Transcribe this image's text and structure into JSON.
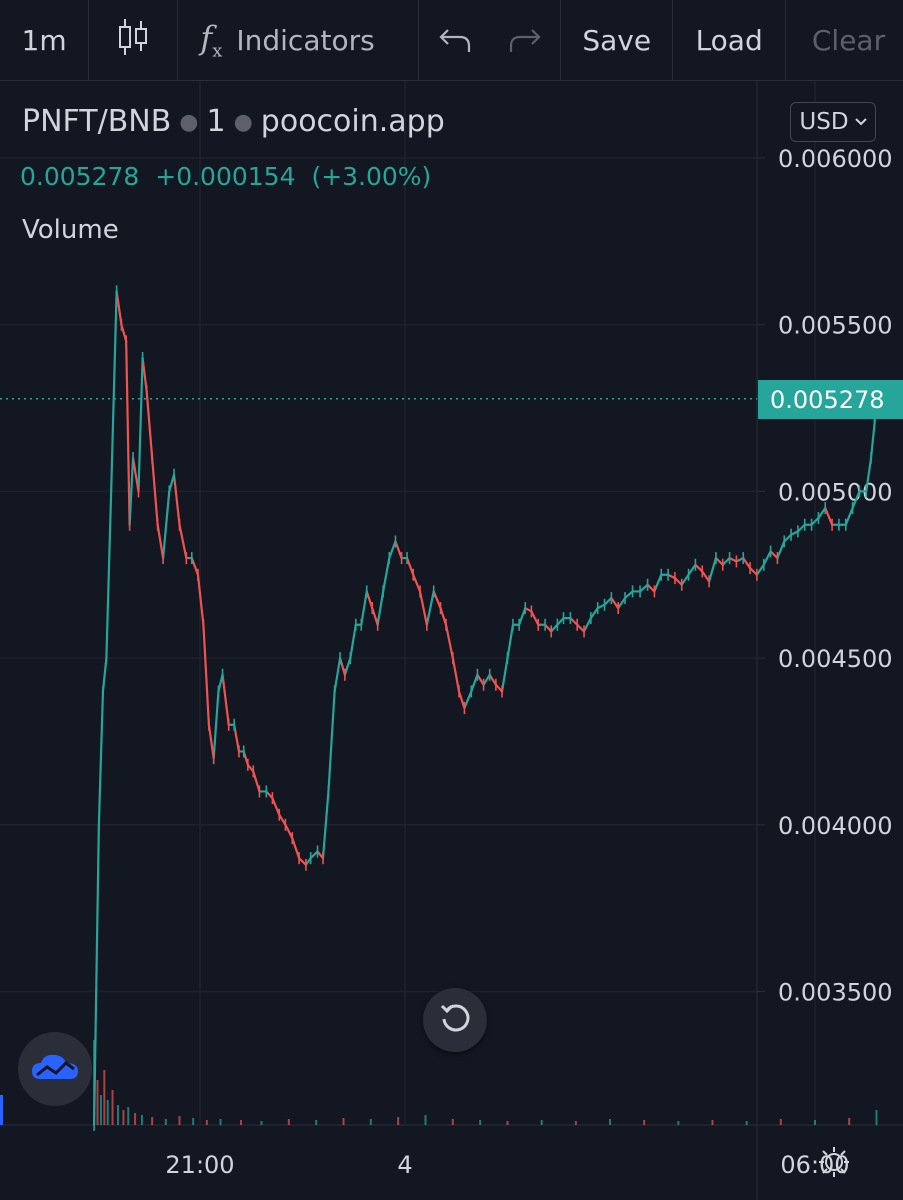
{
  "toolbar": {
    "interval": "1m",
    "indicators_label": "Indicators",
    "save_label": "Save",
    "load_label": "Load",
    "clear_label": "Clear"
  },
  "legend": {
    "symbol": "PNFT/BNB",
    "interval": "1",
    "source": "poocoin.app",
    "last_price": "0.005278",
    "change": "+0.000154",
    "change_pct": "(+3.00%)",
    "volume_label": "Volume"
  },
  "currency": {
    "label": "USD"
  },
  "icons": {
    "candles": "candlestick-icon",
    "indicators": "fx-icon",
    "undo": "undo-icon",
    "redo": "redo-icon",
    "reset": "reset-icon",
    "logo": "tradingview-cloud-icon",
    "settings": "gear-icon"
  },
  "colors": {
    "background": "#131722",
    "up": "#26a69a",
    "down": "#ef5350",
    "grid": "#2a2e39",
    "text": "#d1d4dc"
  },
  "chart_data": {
    "type": "line",
    "title": "PNFT/BNB · 1 · poocoin.app",
    "ylim": [
      0.0031,
      0.00605
    ],
    "y_ticks": [
      "0.006000",
      "0.005500",
      "0.005000",
      "0.004500",
      "0.004000",
      "0.003500"
    ],
    "y_tick_values": [
      0.006,
      0.0055,
      0.005,
      0.0045,
      0.004,
      0.0035
    ],
    "x_ticks": [
      "21:00",
      "4",
      "06:00"
    ],
    "x_tick_hours": [
      21,
      24,
      30
    ],
    "xlim_hours": [
      18.8,
      31.4
    ],
    "last_price": 0.005278,
    "series": [
      {
        "x_hours": [
          19.45,
          19.52,
          19.58,
          19.63,
          19.7,
          19.78,
          19.85,
          19.92,
          19.97,
          20.02,
          20.1,
          20.16,
          20.22,
          20.3,
          20.38,
          20.46,
          20.55,
          20.62,
          20.7,
          20.8,
          20.88,
          20.97,
          21.05,
          21.13,
          21.2,
          21.27,
          21.33,
          21.42,
          21.5,
          21.57,
          21.64,
          21.7,
          21.78,
          21.87,
          21.97,
          22.06,
          22.16,
          22.25,
          22.35,
          22.45,
          22.55,
          22.62,
          22.72,
          22.8,
          22.88,
          22.97,
          23.05,
          23.12,
          23.2,
          23.28,
          23.36,
          23.44,
          23.52,
          23.6,
          23.68,
          23.77,
          23.86,
          23.95,
          24.03,
          24.12,
          24.22,
          24.32,
          24.42,
          24.52,
          24.6,
          24.7,
          24.79,
          24.87,
          24.97,
          25.06,
          25.15,
          25.24,
          25.33,
          25.42,
          25.5,
          25.58,
          25.67,
          25.76,
          25.85,
          25.95,
          26.05,
          26.14,
          26.23,
          26.32,
          26.42,
          26.52,
          26.62,
          26.72,
          26.82,
          26.92,
          27.02,
          27.12,
          27.22,
          27.33,
          27.44,
          27.55,
          27.65,
          27.75,
          27.85,
          27.95,
          28.05,
          28.15,
          28.25,
          28.35,
          28.45,
          28.55,
          28.65,
          28.75,
          28.85,
          28.95,
          29.05,
          29.15,
          29.25,
          29.35,
          29.45,
          29.55,
          29.65,
          29.75,
          29.85,
          29.95,
          30.05,
          30.15,
          30.25,
          30.35,
          30.45,
          30.55,
          30.65,
          30.75,
          30.82,
          30.87,
          30.9
        ],
        "values": [
          0.0031,
          0.004,
          0.0044,
          0.0045,
          0.005,
          0.0056,
          0.0055,
          0.00545,
          0.0049,
          0.0051,
          0.005,
          0.0054,
          0.0053,
          0.0051,
          0.0049,
          0.0048,
          0.005,
          0.00505,
          0.0049,
          0.0048,
          0.0048,
          0.00475,
          0.0046,
          0.0043,
          0.0042,
          0.0044,
          0.00445,
          0.0043,
          0.0043,
          0.00422,
          0.00422,
          0.00418,
          0.00416,
          0.0041,
          0.0041,
          0.00408,
          0.00403,
          0.004,
          0.00396,
          0.0039,
          0.00388,
          0.0039,
          0.00392,
          0.0039,
          0.0041,
          0.0044,
          0.0045,
          0.00445,
          0.0045,
          0.0046,
          0.0046,
          0.0047,
          0.00465,
          0.0046,
          0.0047,
          0.0048,
          0.00485,
          0.0048,
          0.0048,
          0.00475,
          0.0047,
          0.0046,
          0.0047,
          0.00465,
          0.0046,
          0.0045,
          0.0044,
          0.00435,
          0.0044,
          0.00445,
          0.00442,
          0.00445,
          0.00442,
          0.0044,
          0.0045,
          0.0046,
          0.0046,
          0.00465,
          0.00464,
          0.0046,
          0.0046,
          0.00458,
          0.0046,
          0.00462,
          0.00462,
          0.0046,
          0.00458,
          0.00462,
          0.00465,
          0.00466,
          0.00468,
          0.00465,
          0.00468,
          0.0047,
          0.0047,
          0.00472,
          0.0047,
          0.00475,
          0.00475,
          0.00474,
          0.00472,
          0.00475,
          0.00478,
          0.00476,
          0.00473,
          0.0048,
          0.00478,
          0.0048,
          0.00479,
          0.0048,
          0.00477,
          0.00475,
          0.00478,
          0.00482,
          0.0048,
          0.00485,
          0.00487,
          0.00488,
          0.0049,
          0.0049,
          0.00492,
          0.00495,
          0.0049,
          0.0049,
          0.0049,
          0.00495,
          0.005,
          0.005,
          0.0051,
          0.0052,
          0.005278
        ]
      }
    ],
    "volume": {
      "x_hours": [
        19.45,
        19.5,
        19.55,
        19.6,
        19.65,
        19.72,
        19.8,
        19.88,
        19.95,
        20.05,
        20.15,
        20.3,
        20.5,
        20.7,
        20.9,
        21.1,
        21.3,
        21.6,
        21.9,
        22.3,
        22.7,
        23.1,
        23.5,
        23.9,
        24.3,
        24.7,
        25.1,
        25.5,
        26.0,
        26.5,
        27.0,
        27.5,
        28.0,
        28.5,
        29.0,
        29.5,
        30.0,
        30.5,
        30.9
      ],
      "values": [
        85,
        45,
        30,
        55,
        25,
        35,
        20,
        15,
        18,
        12,
        10,
        8,
        6,
        9,
        7,
        5,
        6,
        5,
        4,
        6,
        5,
        7,
        6,
        8,
        10,
        6,
        5,
        4,
        5,
        4,
        6,
        5,
        4,
        5,
        4,
        6,
        5,
        7,
        15
      ]
    }
  }
}
